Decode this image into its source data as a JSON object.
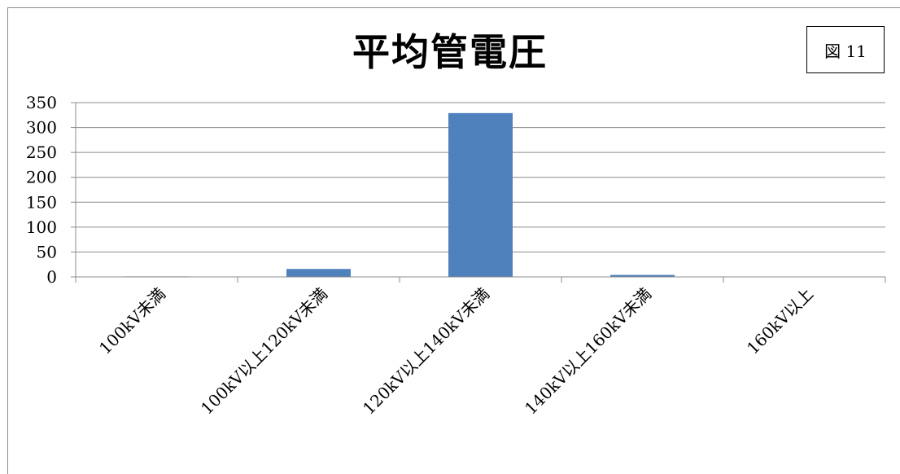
{
  "chart_data": {
    "type": "bar",
    "title": "平均管電圧",
    "categories": [
      "100kV未満",
      "100kV以上120kV未満",
      "120kV以上140kV未満",
      "140kV以上160kV未満",
      "160kV以上"
    ],
    "values": [
      1,
      16,
      329,
      4,
      0
    ],
    "ylim": [
      0,
      350
    ],
    "yticks": [
      0,
      50,
      100,
      150,
      200,
      250,
      300,
      350
    ],
    "xlabel": "",
    "ylabel": "",
    "grid": true,
    "legend": "none",
    "bar_color": "#4f81bd"
  },
  "figure_label": "図 11"
}
